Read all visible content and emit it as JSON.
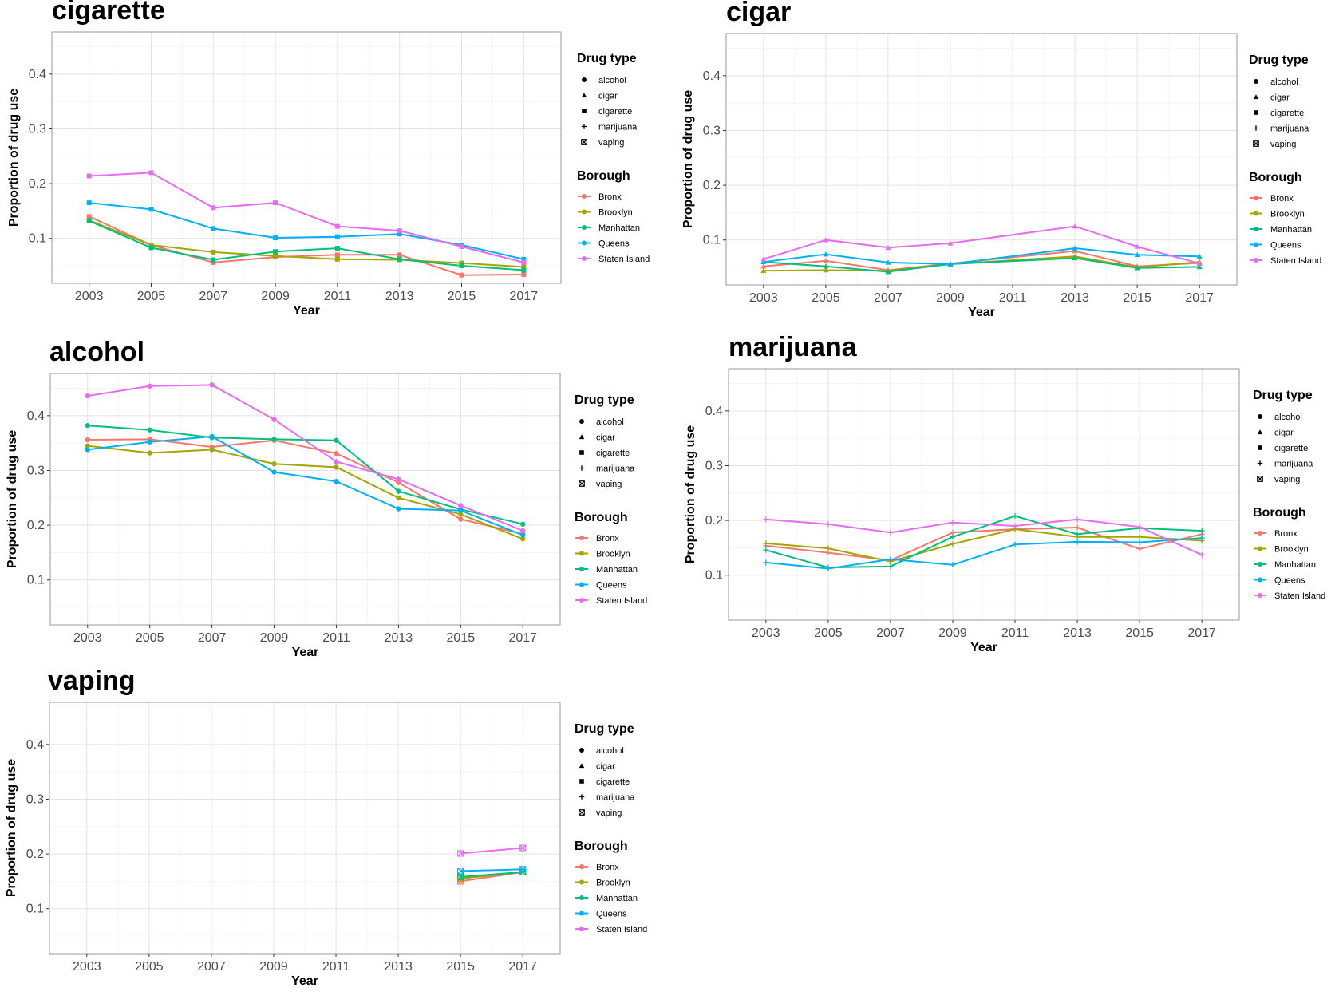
{
  "legend": {
    "drug_title": "Drug type",
    "drug_items": [
      {
        "label": "alcohol",
        "shape": "circle"
      },
      {
        "label": "cigar",
        "shape": "triangle"
      },
      {
        "label": "cigarette",
        "shape": "square"
      },
      {
        "label": "marijuana",
        "shape": "plus"
      },
      {
        "label": "vaping",
        "shape": "boxed-x"
      }
    ],
    "borough_title": "Borough",
    "borough_items": [
      {
        "label": "Bronx",
        "color": "#F8766D"
      },
      {
        "label": "Brooklyn",
        "color": "#A3A500"
      },
      {
        "label": "Manhattan",
        "color": "#00BF7D"
      },
      {
        "label": "Queens",
        "color": "#00B0F6"
      },
      {
        "label": "Staten Island",
        "color": "#E76BF3"
      }
    ]
  },
  "chart_data": [
    {
      "type": "line",
      "title": "cigarette",
      "xlabel": "Year",
      "ylabel": "Proportion of drug use",
      "marker": "square",
      "x": [
        2003,
        2005,
        2007,
        2009,
        2011,
        2013,
        2015,
        2017
      ],
      "xlim": [
        2001.8,
        2018.2
      ],
      "ylim": [
        0.018,
        0.477
      ],
      "yticks": [
        0.1,
        0.2,
        0.3,
        0.4
      ],
      "grid": true,
      "series": [
        {
          "name": "Bronx",
          "color": "#F8766D",
          "values": [
            0.14,
            0.088,
            0.056,
            0.066,
            0.07,
            0.07,
            0.033,
            0.034
          ]
        },
        {
          "name": "Brooklyn",
          "color": "#A3A500",
          "values": [
            0.133,
            0.088,
            0.075,
            0.068,
            0.062,
            0.061,
            0.055,
            0.048
          ]
        },
        {
          "name": "Manhattan",
          "color": "#00BF7D",
          "values": [
            0.132,
            0.083,
            0.061,
            0.076,
            0.082,
            0.062,
            0.05,
            0.042
          ]
        },
        {
          "name": "Queens",
          "color": "#00B0F6",
          "values": [
            0.165,
            0.153,
            0.118,
            0.101,
            0.103,
            0.108,
            0.088,
            0.062
          ]
        },
        {
          "name": "Staten Island",
          "color": "#E76BF3",
          "values": [
            0.214,
            0.22,
            0.156,
            0.165,
            0.122,
            0.114,
            0.085,
            0.056
          ]
        }
      ]
    },
    {
      "type": "line",
      "title": "cigar",
      "xlabel": "Year",
      "ylabel": "Proportion of drug use",
      "marker": "triangle",
      "x": [
        2003,
        2005,
        2007,
        2009,
        2011,
        2013,
        2015,
        2017
      ],
      "xlim": [
        2001.8,
        2018.2
      ],
      "ylim": [
        0.018,
        0.477
      ],
      "yticks": [
        0.1,
        0.2,
        0.3,
        0.4
      ],
      "grid": true,
      "series": [
        {
          "name": "Bronx",
          "color": "#F8766D",
          "values": [
            0.052,
            0.062,
            0.045,
            0.057,
            null,
            0.08,
            0.052,
            0.058
          ]
        },
        {
          "name": "Brooklyn",
          "color": "#A3A500",
          "values": [
            0.044,
            0.045,
            0.044,
            0.056,
            null,
            0.07,
            0.05,
            0.06
          ]
        },
        {
          "name": "Manhattan",
          "color": "#00BF7D",
          "values": [
            0.06,
            0.052,
            0.042,
            0.056,
            null,
            0.067,
            0.049,
            0.051
          ]
        },
        {
          "name": "Queens",
          "color": "#00B0F6",
          "values": [
            0.06,
            0.074,
            0.059,
            0.056,
            null,
            0.085,
            0.073,
            0.07
          ]
        },
        {
          "name": "Staten Island",
          "color": "#E76BF3",
          "values": [
            0.065,
            0.1,
            0.086,
            0.094,
            null,
            0.125,
            0.088,
            0.057
          ]
        }
      ]
    },
    {
      "type": "line",
      "title": "alcohol",
      "xlabel": "Year",
      "ylabel": "Proportion of drug use",
      "marker": "circle",
      "x": [
        2003,
        2005,
        2007,
        2009,
        2011,
        2013,
        2015,
        2017
      ],
      "xlim": [
        2001.8,
        2018.2
      ],
      "ylim": [
        0.018,
        0.477
      ],
      "yticks": [
        0.1,
        0.2,
        0.3,
        0.4
      ],
      "grid": true,
      "series": [
        {
          "name": "Bronx",
          "color": "#F8766D",
          "values": [
            0.356,
            0.357,
            0.343,
            0.355,
            0.331,
            0.278,
            0.211,
            0.184
          ]
        },
        {
          "name": "Brooklyn",
          "color": "#A3A500",
          "values": [
            0.345,
            0.332,
            0.338,
            0.312,
            0.306,
            0.25,
            0.22,
            0.175
          ]
        },
        {
          "name": "Manhattan",
          "color": "#00BF7D",
          "values": [
            0.382,
            0.374,
            0.36,
            0.357,
            0.355,
            0.262,
            0.229,
            0.202
          ]
        },
        {
          "name": "Queens",
          "color": "#00B0F6",
          "values": [
            0.338,
            0.352,
            0.362,
            0.297,
            0.28,
            0.23,
            0.227,
            0.182
          ]
        },
        {
          "name": "Staten Island",
          "color": "#E76BF3",
          "values": [
            0.436,
            0.454,
            0.456,
            0.393,
            0.316,
            0.284,
            0.236,
            0.19
          ]
        }
      ]
    },
    {
      "type": "line",
      "title": "marijuana",
      "xlabel": "Year",
      "ylabel": "Proportion of drug use",
      "marker": "plus",
      "x": [
        2003,
        2005,
        2007,
        2009,
        2011,
        2013,
        2015,
        2017
      ],
      "xlim": [
        2001.8,
        2018.2
      ],
      "ylim": [
        0.018,
        0.477
      ],
      "yticks": [
        0.1,
        0.2,
        0.3,
        0.4
      ],
      "grid": true,
      "series": [
        {
          "name": "Bronx",
          "color": "#F8766D",
          "values": [
            0.154,
            0.141,
            0.127,
            0.178,
            0.184,
            0.187,
            0.148,
            0.175
          ]
        },
        {
          "name": "Brooklyn",
          "color": "#A3A500",
          "values": [
            0.158,
            0.149,
            0.125,
            0.157,
            0.184,
            0.17,
            0.17,
            0.163
          ]
        },
        {
          "name": "Manhattan",
          "color": "#00BF7D",
          "values": [
            0.146,
            0.114,
            0.116,
            0.17,
            0.208,
            0.175,
            0.186,
            0.181
          ]
        },
        {
          "name": "Queens",
          "color": "#00B0F6",
          "values": [
            0.123,
            0.112,
            0.129,
            0.119,
            0.156,
            0.161,
            0.16,
            0.168
          ]
        },
        {
          "name": "Staten Island",
          "color": "#E76BF3",
          "values": [
            0.202,
            0.193,
            0.178,
            0.196,
            0.19,
            0.202,
            0.188,
            0.137
          ]
        }
      ]
    },
    {
      "type": "line",
      "title": "vaping",
      "xlabel": "Year",
      "ylabel": "Proportion of drug use",
      "marker": "boxed-x",
      "x": [
        2003,
        2005,
        2007,
        2009,
        2011,
        2013,
        2015,
        2017
      ],
      "xlim": [
        2001.8,
        2018.2
      ],
      "ylim": [
        0.018,
        0.477
      ],
      "yticks": [
        0.1,
        0.2,
        0.3,
        0.4
      ],
      "grid": true,
      "series": [
        {
          "name": "Bronx",
          "color": "#F8766D",
          "values": [
            null,
            null,
            null,
            null,
            null,
            null,
            0.15,
            0.167
          ]
        },
        {
          "name": "Brooklyn",
          "color": "#A3A500",
          "values": [
            null,
            null,
            null,
            null,
            null,
            null,
            0.155,
            0.167
          ]
        },
        {
          "name": "Manhattan",
          "color": "#00BF7D",
          "values": [
            null,
            null,
            null,
            null,
            null,
            null,
            0.158,
            0.167
          ]
        },
        {
          "name": "Queens",
          "color": "#00B0F6",
          "values": [
            null,
            null,
            null,
            null,
            null,
            null,
            0.169,
            0.172
          ]
        },
        {
          "name": "Staten Island",
          "color": "#E76BF3",
          "values": [
            null,
            null,
            null,
            null,
            null,
            null,
            0.201,
            0.211
          ]
        }
      ]
    }
  ]
}
